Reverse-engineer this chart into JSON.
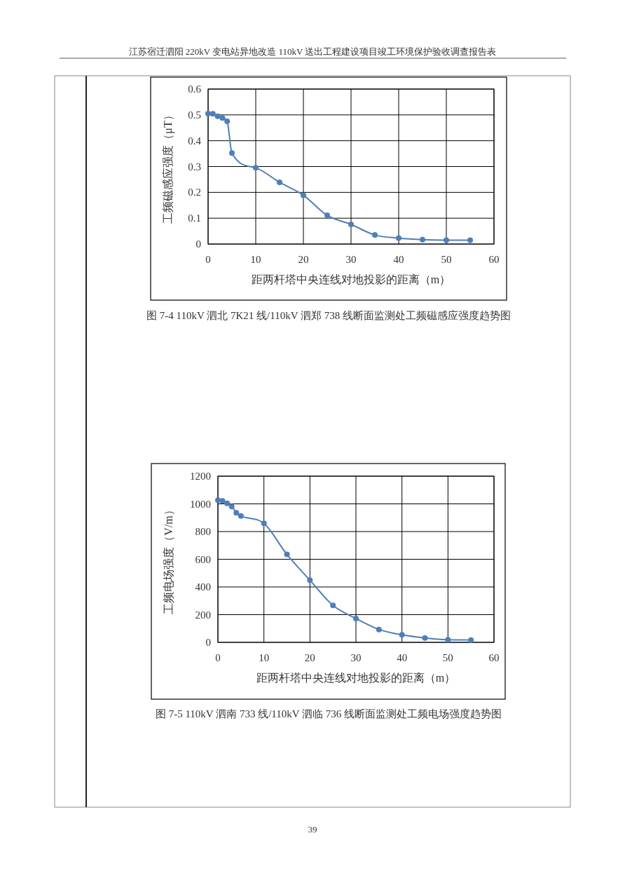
{
  "chart_data": [
    {
      "type": "line",
      "title": "图 7-4 110kV 泗北 7K21 线/110kV 泗郑 738 线断面监测处工频磁感应强度趋势图",
      "xlabel": "距两杆塔中央连线对地投影的距离（m）",
      "ylabel": "工频磁感应强度（μT）",
      "annotations": [
        "江苏宿迁泗阳 220kV 变电站异地改造 110kV 送出工程建设项目竣工环境保护验收调查报告表"
      ],
      "x": [
        0,
        1,
        2,
        3,
        4,
        5,
        10,
        15,
        20,
        25,
        30,
        35,
        40,
        45,
        50,
        55
      ],
      "series": [
        {
          "color": "#4f7fb8",
          "values": [
            0.505,
            0.504,
            0.495,
            0.488,
            0.475,
            0.352,
            0.295,
            0.239,
            0.189,
            0.111,
            0.076,
            0.035,
            0.023,
            0.017,
            0.015,
            0.015
          ]
        }
      ],
      "xlim": [
        0,
        60
      ],
      "ylim": [
        0,
        0.6
      ],
      "xticks": [
        0,
        10,
        20,
        30,
        40,
        50,
        60
      ],
      "yticks": [
        {
          "value": 0,
          "label": "0"
        },
        {
          "value": 0.1,
          "label": "0.1"
        },
        {
          "value": 0.2,
          "label": "0.2"
        },
        {
          "value": 0.3,
          "label": "0.3"
        },
        {
          "value": 0.4,
          "label": "0.4"
        },
        {
          "value": 0.5,
          "label": "0.5"
        },
        {
          "value": 0.6,
          "label": "0.6"
        }
      ],
      "grid": true,
      "marker": "circle",
      "line_style": "solid"
    },
    {
      "type": "line",
      "title": "图 7-5 110kV 泗南 733 线/110kV 泗临 736 线断面监测处工频电场强度趋势图",
      "xlabel": "距两杆塔中央连线对地投影的距离（m）",
      "ylabel": "工频电场强度（V/m）",
      "annotations": [
        "39"
      ],
      "x": [
        0,
        1,
        2,
        3,
        4,
        5,
        10,
        15,
        20,
        25,
        30,
        35,
        40,
        45,
        50,
        55
      ],
      "series": [
        {
          "color": "#4f7fb8",
          "values": [
            1026,
            1021,
            1004,
            981,
            935,
            913,
            859,
            635,
            449,
            267,
            172,
            93,
            54,
            32,
            19,
            17
          ]
        }
      ],
      "xlim": [
        0,
        60
      ],
      "ylim": [
        0,
        1200
      ],
      "xticks": [
        0,
        10,
        20,
        30,
        40,
        50,
        60
      ],
      "yticks": [
        0,
        200,
        400,
        600,
        800,
        1000,
        1200
      ],
      "grid": true,
      "marker": "circle",
      "line_style": "solid"
    }
  ]
}
